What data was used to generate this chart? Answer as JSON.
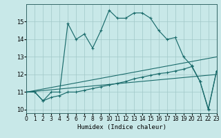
{
  "xlabel": "Humidex (Indice chaleur)",
  "bg_color": "#c8e8e8",
  "grid_color": "#a0c8c8",
  "line_color": "#1a6b6b",
  "xlim": [
    0,
    23
  ],
  "ylim": [
    9.8,
    16.0
  ],
  "xticks": [
    0,
    1,
    2,
    3,
    4,
    5,
    6,
    7,
    8,
    9,
    10,
    11,
    12,
    13,
    14,
    15,
    16,
    17,
    18,
    19,
    20,
    21,
    22,
    23
  ],
  "yticks": [
    10,
    11,
    12,
    13,
    14,
    15
  ],
  "curve1_x": [
    0,
    1,
    2,
    3,
    4,
    5,
    6,
    7,
    8,
    9,
    10,
    11,
    12,
    13,
    14,
    15,
    16,
    17,
    18,
    19,
    20,
    21,
    22,
    23
  ],
  "curve1_y": [
    11.0,
    11.0,
    10.5,
    11.0,
    11.0,
    14.9,
    14.0,
    14.3,
    13.5,
    14.5,
    15.65,
    15.2,
    15.2,
    15.5,
    15.5,
    15.2,
    14.5,
    14.0,
    14.1,
    13.0,
    12.5,
    11.6,
    10.0,
    12.2
  ],
  "curve2_x": [
    0,
    1,
    2,
    3,
    4,
    5,
    6,
    7,
    8,
    9,
    10,
    11,
    12,
    13,
    14,
    15,
    16,
    17,
    18,
    19,
    20,
    21,
    22,
    23
  ],
  "curve2_y": [
    11.0,
    11.0,
    10.5,
    10.7,
    10.8,
    11.0,
    11.0,
    11.1,
    11.2,
    11.3,
    11.4,
    11.5,
    11.6,
    11.75,
    11.85,
    11.95,
    12.05,
    12.1,
    12.2,
    12.3,
    12.45,
    11.6,
    10.05,
    12.2
  ],
  "line3_x": [
    0,
    23
  ],
  "line3_y": [
    11.0,
    13.0
  ],
  "line4_x": [
    0,
    23
  ],
  "line4_y": [
    11.0,
    12.0
  ]
}
